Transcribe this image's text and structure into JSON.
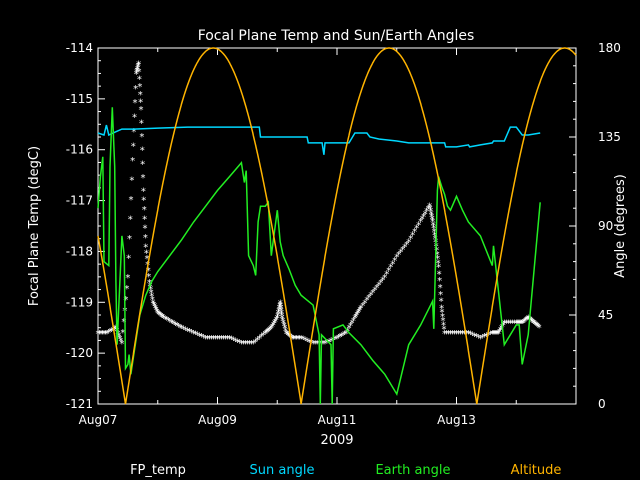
{
  "chart_data": {
    "type": "line",
    "title": "Focal Plane Temp and Sun/Earth Angles",
    "xlabel": "2009",
    "ylabel_left": "Focal Plane Temp (degC)",
    "ylabel_right": "Angle (degrees)",
    "x_range": [
      0,
      8
    ],
    "x_ticks": [
      {
        "x": 0,
        "label": "Aug07"
      },
      {
        "x": 2,
        "label": "Aug09"
      },
      {
        "x": 4,
        "label": "Aug11"
      },
      {
        "x": 6,
        "label": "Aug13"
      }
    ],
    "y_left_range": [
      -121,
      -114
    ],
    "y_left_ticks": [
      "-121",
      "-120",
      "-119",
      "-118",
      "-117",
      "-116",
      "-115",
      "-114"
    ],
    "y_right_range": [
      0,
      180
    ],
    "y_right_ticks": [
      "0",
      "45",
      "90",
      "135",
      "180"
    ],
    "grid": false,
    "legend_position": "bottom",
    "background": "#000000",
    "series": [
      {
        "name": "FP_temp",
        "axis": "left",
        "style": "markers",
        "color": "#ffffff",
        "x": [
          0.0,
          0.15,
          0.3,
          0.4,
          0.5,
          0.58,
          0.64,
          0.68,
          0.72,
          0.76,
          0.8,
          0.86,
          0.92,
          1.0,
          1.1,
          1.25,
          1.4,
          1.6,
          1.8,
          2.0,
          2.2,
          2.4,
          2.6,
          2.8,
          2.9,
          3.0,
          3.05,
          3.08,
          3.15,
          3.25,
          3.4,
          3.6,
          3.8,
          4.0,
          4.15,
          4.3,
          4.4,
          4.6,
          4.8,
          5.0,
          5.2,
          5.4,
          5.55,
          5.6,
          5.65,
          5.7,
          5.75,
          5.8,
          6.0,
          6.2,
          6.4,
          6.6,
          6.7,
          6.8,
          7.0,
          7.1,
          7.2,
          7.3,
          7.4
        ],
        "y": [
          -119.6,
          -119.6,
          -119.5,
          -119.8,
          -118.5,
          -116.2,
          -114.5,
          -114.3,
          -115.2,
          -116.8,
          -117.9,
          -118.6,
          -119.0,
          -119.2,
          -119.3,
          -119.4,
          -119.5,
          -119.6,
          -119.7,
          -119.7,
          -119.7,
          -119.8,
          -119.8,
          -119.6,
          -119.5,
          -119.3,
          -119.0,
          -119.3,
          -119.6,
          -119.7,
          -119.7,
          -119.8,
          -119.8,
          -119.7,
          -119.6,
          -119.3,
          -119.1,
          -118.8,
          -118.5,
          -118.1,
          -117.8,
          -117.4,
          -117.1,
          -117.4,
          -117.8,
          -118.3,
          -119.1,
          -119.6,
          -119.6,
          -119.6,
          -119.7,
          -119.6,
          -119.6,
          -119.4,
          -119.4,
          -119.4,
          -119.3,
          -119.4,
          -119.5
        ]
      },
      {
        "name": "Sun angle",
        "axis": "right",
        "style": "line",
        "color": "#00d8ff",
        "x": [
          0.0,
          0.1,
          0.14,
          0.18,
          0.25,
          0.4,
          0.6,
          1.0,
          1.5,
          2.0,
          2.5,
          2.7,
          2.72,
          2.9,
          3.1,
          3.3,
          3.5,
          3.52,
          3.6,
          3.75,
          3.78,
          3.8,
          3.85,
          4.0,
          4.2,
          4.3,
          4.5,
          4.55,
          4.7,
          5.0,
          5.2,
          5.4,
          5.6,
          5.8,
          5.82,
          6.0,
          6.2,
          6.22,
          6.4,
          6.6,
          6.62,
          6.8,
          6.9,
          7.0,
          7.1,
          7.2,
          7.4
        ],
        "y": [
          137,
          136,
          141,
          136,
          137,
          139,
          139,
          139.5,
          140,
          140,
          140,
          140,
          135,
          135,
          135,
          135,
          135,
          132,
          132,
          132,
          126,
          132,
          132,
          132,
          132,
          137,
          137,
          135,
          134,
          133,
          132,
          132,
          132,
          132,
          130,
          130,
          131,
          130,
          131,
          132,
          133,
          133,
          140,
          140,
          136,
          136,
          137
        ]
      },
      {
        "name": "Earth angle",
        "axis": "right",
        "style": "line",
        "color": "#22ee22",
        "x": [
          0.0,
          0.04,
          0.08,
          0.1,
          0.18,
          0.2,
          0.24,
          0.28,
          0.3,
          0.32,
          0.4,
          0.44,
          0.46,
          0.5,
          0.52,
          0.55,
          0.6,
          0.7,
          0.8,
          0.9,
          1.0,
          1.2,
          1.4,
          1.6,
          1.8,
          2.0,
          2.2,
          2.4,
          2.45,
          2.48,
          2.52,
          2.6,
          2.64,
          2.68,
          2.72,
          2.8,
          2.85,
          2.9,
          3.0,
          3.05,
          3.1,
          3.2,
          3.3,
          3.4,
          3.6,
          3.7,
          3.72,
          3.74,
          3.9,
          3.92,
          3.94,
          4.1,
          4.2,
          4.4,
          4.6,
          4.8,
          5.0,
          5.2,
          5.4,
          5.6,
          5.62,
          5.68,
          5.7,
          5.75,
          5.8,
          5.85,
          5.9,
          6.0,
          6.1,
          6.2,
          6.4,
          6.6,
          6.62,
          6.8,
          6.9,
          7.0,
          7.05,
          7.1,
          7.2,
          7.4
        ],
        "y": [
          99,
          115,
          125,
          72,
          70,
          120,
          150,
          120,
          62,
          30,
          85,
          75,
          18,
          20,
          25,
          15,
          25,
          45,
          55,
          62,
          67,
          75,
          83,
          92,
          100,
          108,
          115,
          122,
          112,
          118,
          75,
          70,
          65,
          92,
          100,
          100,
          102,
          75,
          98,
          82,
          75,
          68,
          60,
          55,
          50,
          35,
          0,
          35,
          30,
          0,
          38,
          40,
          36,
          30,
          22,
          15,
          5,
          30,
          40,
          52,
          38,
          108,
          115,
          110,
          106,
          100,
          98,
          105,
          98,
          92,
          85,
          70,
          80,
          30,
          35,
          40,
          40,
          20,
          35,
          102
        ]
      },
      {
        "name": "Altitude",
        "axis": "right",
        "style": "line",
        "color": "#ffb400",
        "generator": "abs_sin",
        "period_days": 2.94,
        "zero_at": 0.46,
        "peak": 180
      }
    ]
  }
}
